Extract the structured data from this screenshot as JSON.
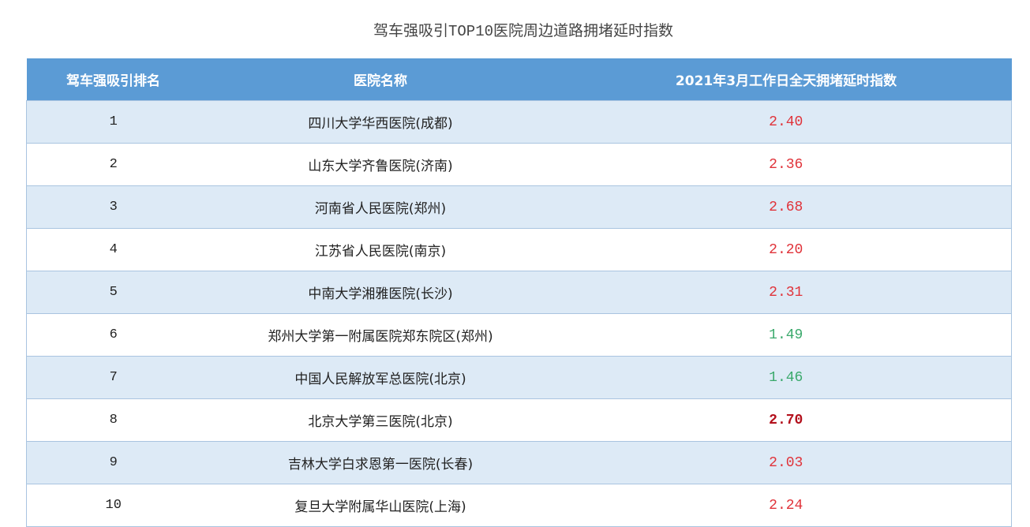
{
  "title_prefix": "驾车强吸引",
  "title_mono": "TOP10",
  "title_suffix": "医院周边道路拥堵延时指数",
  "columns": [
    "驾车强吸引排名",
    "医院名称",
    "2021年3月工作日全天拥堵延时指数"
  ],
  "colors": {
    "high": "#e0333a",
    "low": "#3aa96b",
    "max": "#b3101c",
    "header": "#5b9bd5",
    "stripe": "#ddeaf6"
  },
  "rows": [
    {
      "rank": "1",
      "name": "四川大学华西医院(成都)",
      "value": "2.40",
      "level": "high"
    },
    {
      "rank": "2",
      "name": "山东大学齐鲁医院(济南)",
      "value": "2.36",
      "level": "high"
    },
    {
      "rank": "3",
      "name": "河南省人民医院(郑州)",
      "value": "2.68",
      "level": "high"
    },
    {
      "rank": "4",
      "name": "江苏省人民医院(南京)",
      "value": "2.20",
      "level": "high"
    },
    {
      "rank": "5",
      "name": "中南大学湘雅医院(长沙)",
      "value": "2.31",
      "level": "high"
    },
    {
      "rank": "6",
      "name": "郑州大学第一附属医院郑东院区(郑州)",
      "value": "1.49",
      "level": "low"
    },
    {
      "rank": "7",
      "name": "中国人民解放军总医院(北京)",
      "value": "1.46",
      "level": "low"
    },
    {
      "rank": "8",
      "name": "北京大学第三医院(北京)",
      "value": "2.70",
      "level": "max"
    },
    {
      "rank": "9",
      "name": "吉林大学白求恩第一医院(长春)",
      "value": "2.03",
      "level": "high"
    },
    {
      "rank": "10",
      "name": "复旦大学附属华山医院(上海)",
      "value": "2.24",
      "level": "high"
    }
  ]
}
